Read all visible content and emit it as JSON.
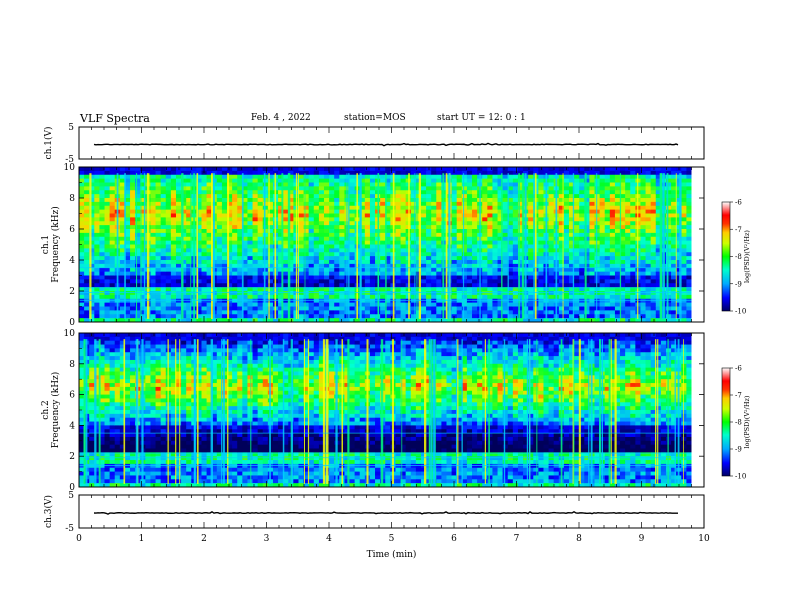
{
  "header": {
    "title": "VLF Spectra",
    "date": "Feb. 4 , 2022",
    "station": "station=MOS",
    "start": "start UT =  12: 0  : 1"
  },
  "colors": {
    "background": "#000a30",
    "colormap": [
      "#0000c8",
      "#0064ff",
      "#00d2ff",
      "#00ff96",
      "#64ff00",
      "#ffff00",
      "#ff7800",
      "#ff0000",
      "#ff8080",
      "#ffffff"
    ]
  },
  "chart_data": [
    {
      "type": "line",
      "name": "ch1-waveform",
      "ylabel": "ch.1(V)",
      "ylim": [
        -5,
        5
      ],
      "yticks": [
        "5",
        "-5"
      ],
      "x": [
        0,
        10
      ],
      "y": [
        0,
        0
      ]
    },
    {
      "type": "heatmap",
      "name": "ch1-spectrogram",
      "ylabel_top": "ch.1",
      "ylabel": "Frequency (kHz)",
      "ylim": [
        0,
        10
      ],
      "yticks": [
        "0",
        "2",
        "4",
        "6",
        "8",
        "10"
      ],
      "xlim": [
        0,
        9.8
      ],
      "dominant_band_khz": [
        4,
        10
      ],
      "colorbar": {
        "label": "log(PSD)(V²/Hz)",
        "range": [
          -10,
          -6
        ],
        "ticks": [
          "-6",
          "-7",
          "-8",
          "-9",
          "-10"
        ]
      }
    },
    {
      "type": "heatmap",
      "name": "ch2-spectrogram",
      "ylabel_top": "ch.2",
      "ylabel": "Frequency (kHz)",
      "ylim": [
        0,
        10
      ],
      "yticks": [
        "0",
        "2",
        "4",
        "6",
        "8",
        "10"
      ],
      "xlim": [
        0,
        9.8
      ],
      "dominant_band_khz": [
        5,
        8
      ],
      "colorbar": {
        "label": "log(PSD)(V²/Hz)",
        "range": [
          -10,
          -6
        ],
        "ticks": [
          "-6",
          "-7",
          "-8",
          "-9",
          "-10"
        ]
      }
    },
    {
      "type": "line",
      "name": "ch3-waveform",
      "ylabel": "ch.3(V)",
      "ylim": [
        -5,
        5
      ],
      "yticks": [
        "5",
        "-5"
      ],
      "x": [
        0,
        10
      ],
      "y": [
        0,
        0
      ]
    }
  ],
  "xaxis": {
    "label": "Time (min)",
    "range": [
      0,
      10
    ],
    "ticks": [
      "0",
      "1",
      "2",
      "3",
      "4",
      "5",
      "6",
      "7",
      "8",
      "9",
      "10"
    ]
  }
}
